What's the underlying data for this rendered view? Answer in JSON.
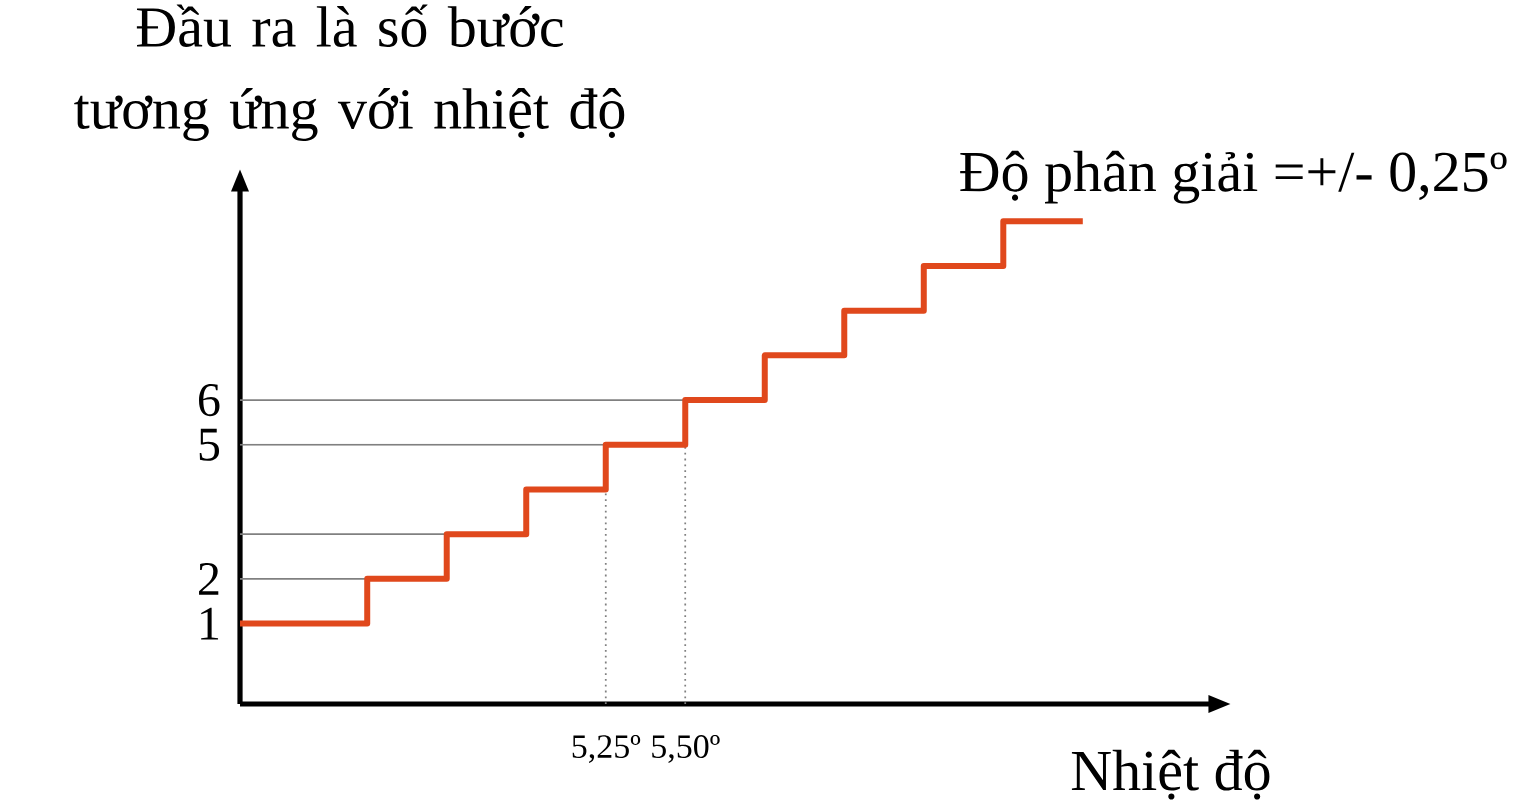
{
  "chart_data": {
    "type": "step",
    "xlabel": "Nhiệt độ",
    "ylabel": "Đầu ra là số bước tương ứng với nhiệt độ",
    "annotations": [
      "Độ phân giải =+/- 0,25º"
    ],
    "x": [
      4.1,
      4.5,
      4.75,
      5.0,
      5.25,
      5.5,
      5.75,
      6.0,
      6.25,
      6.5,
      6.75
    ],
    "series": [
      {
        "color": "#e0481c",
        "values": [
          1,
          2,
          3,
          4,
          5,
          6,
          7,
          8,
          9,
          10,
          10
        ]
      }
    ],
    "xlim": [
      4.1,
      7.15
    ],
    "ylim": [
      -0.8,
      10.7
    ],
    "xticks": [
      {
        "value": 5.25,
        "label": "5,25º"
      },
      {
        "value": 5.5,
        "label": "5,50º"
      }
    ],
    "yticks": [
      1,
      2,
      5,
      6
    ],
    "ref_lines": [
      {
        "axis": "y",
        "value": 2
      },
      {
        "axis": "y",
        "value": 3
      },
      {
        "axis": "y",
        "value": 5
      },
      {
        "axis": "y",
        "value": 6
      },
      {
        "axis": "x",
        "value": 5.25
      },
      {
        "axis": "x",
        "value": 5.5
      }
    ],
    "grid": false,
    "marker": "none",
    "line_style": "solid"
  }
}
